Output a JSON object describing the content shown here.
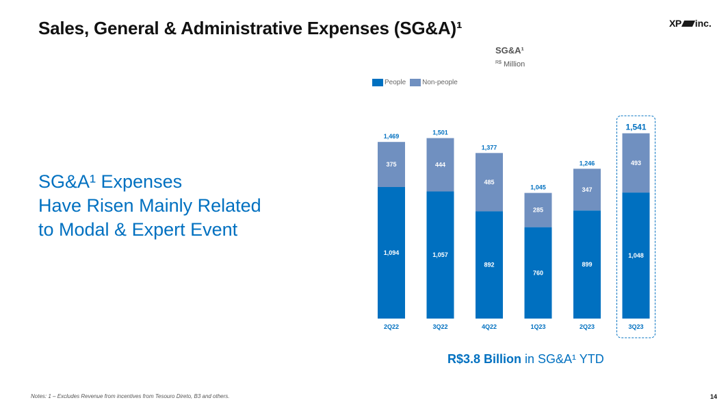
{
  "header": {
    "title": "Sales, General & Administrative Expenses (SG&A)¹",
    "logo_xp": "XP",
    "logo_inc": "inc."
  },
  "headline": {
    "lines": [
      "SG&A¹ Expenses",
      "Have Risen Mainly Related",
      "to Modal & Expert Event"
    ]
  },
  "chart": {
    "title": "SG&A¹",
    "unit_prefix": "R$",
    "unit": "Million"
  },
  "legend": {
    "people": "People",
    "non_people": "Non-people"
  },
  "chart_data": {
    "type": "bar",
    "stacked": true,
    "categories": [
      "2Q22",
      "3Q22",
      "4Q22",
      "1Q23",
      "2Q23",
      "3Q23"
    ],
    "series": [
      {
        "name": "People",
        "values": [
          1094,
          1057,
          892,
          760,
          899,
          1048
        ],
        "labels": [
          "1,094",
          "1,057",
          "892",
          "760",
          "899",
          "1,048"
        ]
      },
      {
        "name": "Non-people",
        "values": [
          375,
          444,
          485,
          285,
          347,
          493
        ],
        "labels": [
          "375",
          "444",
          "485",
          "285",
          "347",
          "493"
        ]
      }
    ],
    "totals": [
      1469,
      1501,
      1377,
      1045,
      1246,
      1541
    ],
    "total_labels": [
      "1,469",
      "1,501",
      "1,377",
      "1,045",
      "1,246",
      "1,541"
    ],
    "highlight_category": "3Q23",
    "colors": {
      "people": "#0070c0",
      "non_people": "#7090c0",
      "label": "#0070c0",
      "inner_label": "#ffffff"
    }
  },
  "ytd": {
    "bold": "R$3.8 Billion",
    "rest": " in SG&A¹ YTD"
  },
  "footer": {
    "notes": "Notes: 1 – Excludes Revenue from incentives from Tesouro Direto, B3 and others.",
    "page": "14"
  }
}
